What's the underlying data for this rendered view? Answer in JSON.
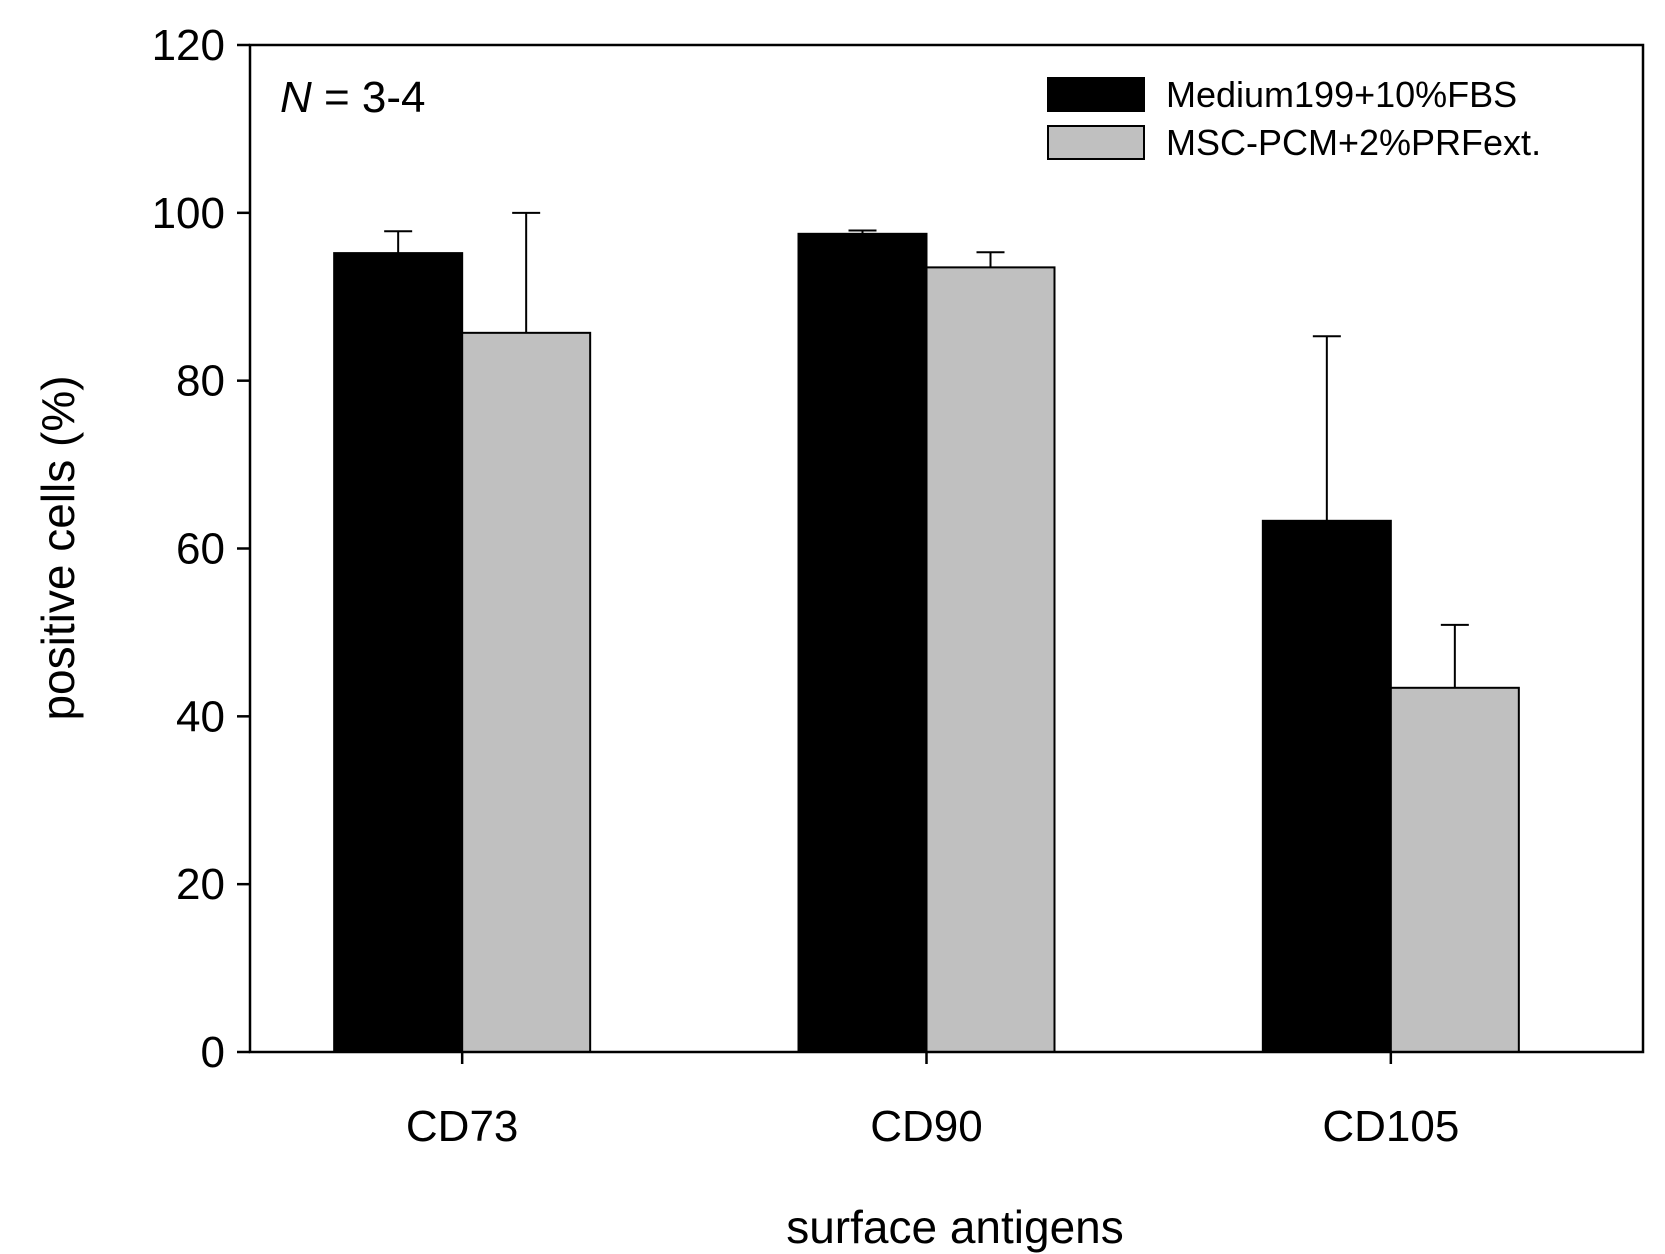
{
  "chart_data": {
    "type": "bar",
    "xlabel": "surface antigens",
    "ylabel": "positive cells (%)",
    "ylim": [
      0,
      120
    ],
    "yticks": [
      0,
      20,
      40,
      60,
      80,
      100,
      120
    ],
    "yticks_labels": [
      "0",
      "20",
      "40",
      "60",
      "80",
      "100",
      "120"
    ],
    "categories": [
      "CD73",
      "CD90",
      "CD105"
    ],
    "series": [
      {
        "name": "Medium199+10%FBS",
        "color": "#000000",
        "values": [
          95.2,
          97.5,
          63.3
        ],
        "errors": [
          2.6,
          0.4,
          22.0
        ]
      },
      {
        "name": "MSC-PCM+2%PRFext.",
        "color": "#c0c0c0",
        "values": [
          85.7,
          93.5,
          43.4
        ],
        "errors": [
          14.3,
          1.8,
          7.5
        ]
      }
    ],
    "annotation": {
      "var": "N",
      "rest": " = 3-4"
    },
    "legend_position": "top-right",
    "grid": false
  }
}
